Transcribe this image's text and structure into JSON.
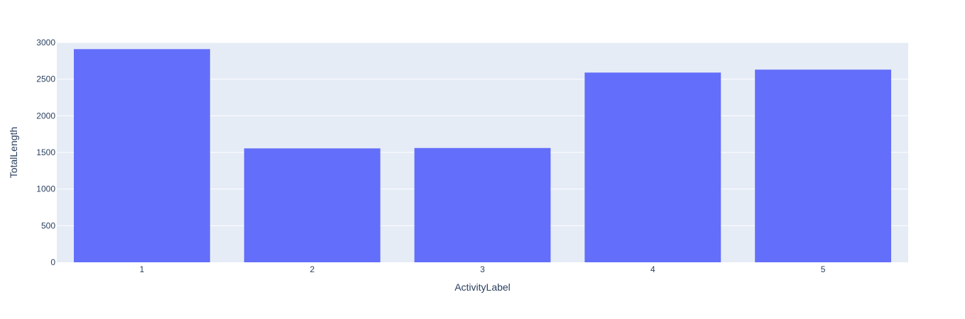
{
  "chart_data": {
    "type": "bar",
    "categories": [
      "1",
      "2",
      "3",
      "4",
      "5"
    ],
    "values": [
      2910,
      1555,
      1560,
      2590,
      2630
    ],
    "xlabel": "ActivityLabel",
    "ylabel": "TotalLength",
    "ylim": [
      0,
      3000
    ],
    "yticks": [
      0,
      500,
      1000,
      1500,
      2000,
      2500,
      3000
    ],
    "grid": true,
    "colors": {
      "bar": "#636efa",
      "plot_background": "#e5ecf6",
      "gridline": "#ffffff",
      "text": "#2a3f5f"
    }
  }
}
